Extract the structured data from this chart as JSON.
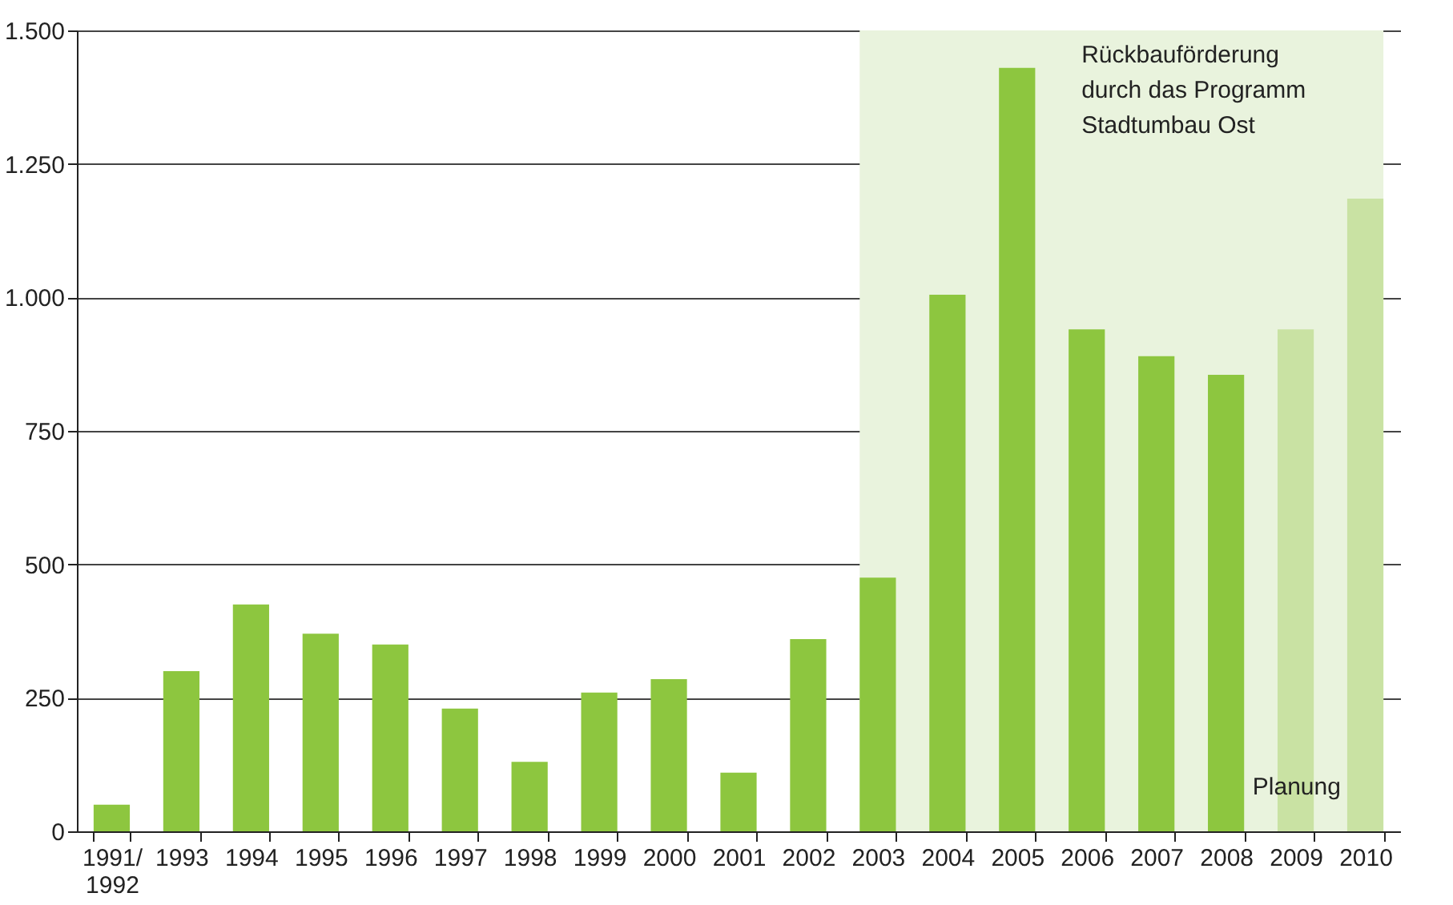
{
  "chart_data": {
    "type": "bar",
    "categories": [
      "1991/ 1992",
      "1993",
      "1994",
      "1995",
      "1996",
      "1997",
      "1998",
      "1999",
      "2000",
      "2001",
      "2002",
      "2003",
      "2004",
      "2005",
      "2006",
      "2007",
      "2008",
      "2009",
      "2010"
    ],
    "values": [
      50,
      300,
      425,
      370,
      350,
      230,
      130,
      260,
      285,
      110,
      360,
      475,
      1005,
      1430,
      940,
      890,
      855,
      940,
      1185
    ],
    "colors": [
      "#8dc63f",
      "#8dc63f",
      "#8dc63f",
      "#8dc63f",
      "#8dc63f",
      "#8dc63f",
      "#8dc63f",
      "#8dc63f",
      "#8dc63f",
      "#8dc63f",
      "#8dc63f",
      "#8dc63f",
      "#8dc63f",
      "#8dc63f",
      "#8dc63f",
      "#8dc63f",
      "#8dc63f",
      "#c9e2a3",
      "#c9e2a3"
    ],
    "ylim": [
      0,
      1500
    ],
    "yticks": [
      0,
      250,
      500,
      750,
      {
        "value": 1000,
        "label": "1.000"
      },
      {
        "value": 1250,
        "label": "1.250"
      },
      {
        "value": 1500,
        "label": "1.500"
      }
    ],
    "grid": "y",
    "bands": [
      {
        "axis": "x",
        "from": "2003",
        "to": "2010",
        "label": "Rückbauförderung\ndurch das Programm\nStadtumbau Ost",
        "color": "#e9f3dd"
      }
    ],
    "annotations": [
      "Planung"
    ]
  }
}
